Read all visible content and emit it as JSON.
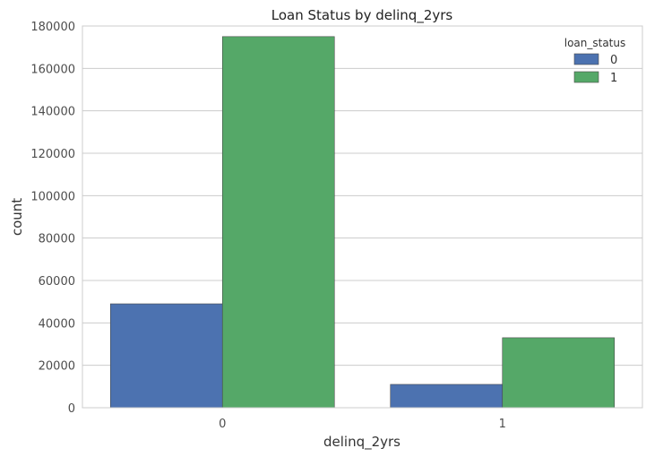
{
  "chart_data": {
    "type": "bar",
    "title": "Loan Status by delinq_2yrs",
    "xlabel": "delinq_2yrs",
    "ylabel": "count",
    "categories": [
      "0",
      "1"
    ],
    "series": [
      {
        "name": "0",
        "values": [
          49000,
          11000
        ],
        "color": "#4c72b0"
      },
      {
        "name": "1",
        "values": [
          175000,
          33000
        ],
        "color": "#55a868"
      }
    ],
    "ylim": [
      0,
      180000
    ],
    "yticks": [
      0,
      20000,
      40000,
      60000,
      80000,
      100000,
      120000,
      140000,
      160000,
      180000
    ],
    "grid": "horizontal",
    "legend": {
      "title": "loan_status",
      "placement": "top-right"
    }
  }
}
